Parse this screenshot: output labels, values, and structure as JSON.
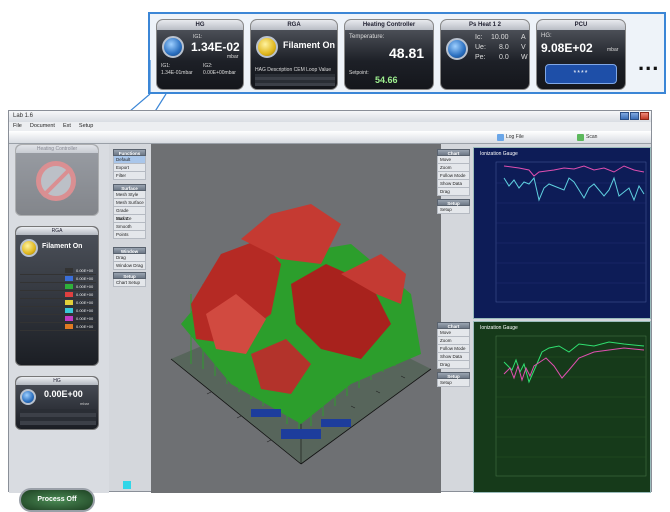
{
  "zoom_strip": {
    "widgets": [
      {
        "title": "HG",
        "line1": "IG1:",
        "value": "1.34E-02",
        "unit": "mbar",
        "foot_label1": "IG1:",
        "foot_label2": "IG2:",
        "foot1": "1.34E-01mbar",
        "foot2": "0.00E+00mbar"
      },
      {
        "title": "RGA",
        "value": "Filament On",
        "foot": "HAG Description  CEM  Loop  Value"
      },
      {
        "title": "Heating Controller",
        "label": "Temperature:",
        "value": "48.81",
        "sub_label": "Setpoint:",
        "sub_value": "54.66"
      },
      {
        "title": "Ps Heat 1 2",
        "ic_label": "Ic:",
        "ic_value": "10.00",
        "ic_unit": "A",
        "ue_label": "Ue:",
        "ue_value": "8.0",
        "ue_unit": "V",
        "pe_label": "Pe:",
        "pe_value": "0.0",
        "pe_unit": "W"
      },
      {
        "title": "PCU",
        "label": "HG:",
        "value": "9.08E+02",
        "unit": "mbar",
        "stars": "****"
      }
    ],
    "more": "..."
  },
  "window": {
    "title": "Lab 1.6",
    "menu": [
      "File",
      "Document",
      "Ext",
      "Setup"
    ],
    "toolbar": [
      "Log File",
      "Scan"
    ],
    "left": {
      "heating_title": "Heating Controller",
      "rga_title": "RGA",
      "rga_status": "Filament On",
      "rga_table": [
        {
          "color": "#333333",
          "value": "0.00E+00"
        },
        {
          "color": "#3a6ed8",
          "value": "0.00E+00"
        },
        {
          "color": "#2fb03a",
          "value": "0.00E+00"
        },
        {
          "color": "#e04040",
          "value": "0.00E+00"
        },
        {
          "color": "#e2d03a",
          "value": "0.00E+00"
        },
        {
          "color": "#3ac8d8",
          "value": "0.00E+00"
        },
        {
          "color": "#c23cc6",
          "value": "0.00E+00"
        },
        {
          "color": "#e07a22",
          "value": "0.00E+00"
        }
      ],
      "hg_title": "HG",
      "hg_value": "0.00E+00",
      "hg_unit": "mbar",
      "process_button": "Process Off"
    },
    "menus": {
      "functions": {
        "header": "Functions",
        "items": [
          "Default",
          "Export",
          "Filter"
        ]
      },
      "surface": {
        "header": "Surface",
        "items": [
          "Mesh Style",
          "Mesh Surface",
          "Grade Surface",
          "Max Z",
          "Smooth",
          "Points"
        ]
      },
      "window": {
        "header": "Window",
        "items": [
          "Drag",
          "Window Drag"
        ]
      },
      "setup": {
        "header": "Setup",
        "items": [
          "Chart Setup"
        ]
      },
      "chart1": {
        "header": "Chart",
        "items": [
          "Move",
          "Zoom",
          "Follow Mode",
          "Show Data",
          "Drag"
        ]
      },
      "setup1": {
        "header": "Setup",
        "items": [
          "Setup"
        ]
      },
      "chart2": {
        "header": "Chart",
        "items": [
          "Move",
          "Zoom",
          "Follow Mode",
          "Show Data",
          "Drag"
        ]
      },
      "setup2": {
        "header": "Setup",
        "items": [
          "Setup"
        ]
      }
    },
    "chart_top_title": "Ionization Gauge",
    "chart_bottom_title": "Ionization Gauge",
    "colors": {
      "accent": "#3b86d6",
      "chart_bg_top": "#0d1c57",
      "chart_bg_bottom": "#163a1a",
      "series_pink": "#e04fb0",
      "series_cyan": "#5fd0e0",
      "series_green": "#30e070"
    }
  }
}
